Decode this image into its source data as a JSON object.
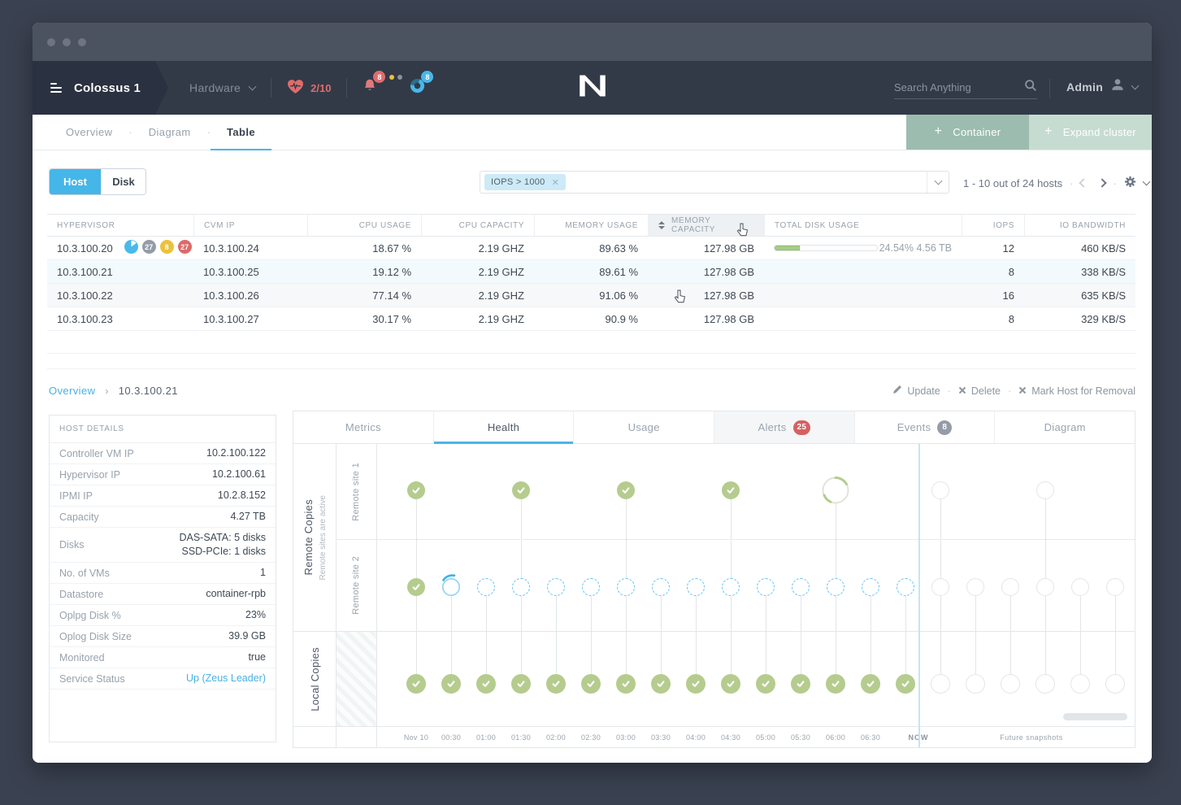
{
  "colors": {
    "accent": "#45b6e8",
    "green": "#b5cc8e",
    "sage_dark": "#9cbcb0",
    "sage_light": "#c6dcd1",
    "red": "#dd6a6a",
    "yellow": "#eac23e",
    "gray_badge": "#959ca8"
  },
  "header": {
    "cluster_name": "Colossus 1",
    "nav_menu": "Hardware",
    "health_ratio": "2/10",
    "alerts_count": "8",
    "tasks_count": "8",
    "search_placeholder": "Search Anything",
    "user_name": "Admin"
  },
  "subnav": {
    "tabs": [
      {
        "label": "Overview"
      },
      {
        "label": "Diagram"
      },
      {
        "label": "Table",
        "active": true
      }
    ],
    "container_button": "Container",
    "expand_button": "Expand cluster"
  },
  "toolbar": {
    "segments": [
      {
        "label": "Host",
        "active": true
      },
      {
        "label": "Disk"
      }
    ],
    "filter_tag": "IOPS > 1000",
    "results_count": "1 - 10 out of 24 hosts"
  },
  "table": {
    "columns": [
      "HYPERVISOR",
      "CVM IP",
      "CPU USAGE",
      "CPU CAPACITY",
      "MEMORY USAGE",
      "MEMORY CAPACITY",
      "TOTAL DISK USAGE",
      "IOPS",
      "IO BANDWIDTH"
    ],
    "sorted_column": "MEMORY CAPACITY",
    "rows": [
      {
        "hypervisor": "10.3.100.20",
        "badges": [
          {
            "type": "pie"
          },
          {
            "type": "count",
            "value": "27",
            "color": "#959ca8"
          },
          {
            "type": "count",
            "value": "8",
            "color": "#eac23e"
          },
          {
            "type": "count",
            "value": "27",
            "color": "#dd6a6a"
          }
        ],
        "cvm_ip": "10.3.100.24",
        "cpu_usage": "18.67 %",
        "cpu_capacity": "2.19 GHZ",
        "memory_usage": "89.63 %",
        "memory_capacity": "127.98 GB",
        "disk_usage_pct": 24.54,
        "disk_usage_label": "24.54% 4.56 TB",
        "iops": "12",
        "io_bandwidth": "460 KB/S",
        "state": "normal"
      },
      {
        "hypervisor": "10.3.100.21",
        "cvm_ip": "10.3.100.25",
        "cpu_usage": "19.12 %",
        "cpu_capacity": "2.19 GHZ",
        "memory_usage": "89.61 %",
        "memory_capacity": "127.98 GB",
        "iops": "8",
        "io_bandwidth": "338 KB/S",
        "state": "selected"
      },
      {
        "hypervisor": "10.3.100.22",
        "cvm_ip": "10.3.100.26",
        "cpu_usage": "77.14 %",
        "cpu_capacity": "2.19 GHZ",
        "memory_usage": "91.06 %",
        "memory_capacity": "127.98 GB",
        "iops": "16",
        "io_bandwidth": "635 KB/S",
        "state": "hover"
      },
      {
        "hypervisor": "10.3.100.23",
        "cvm_ip": "10.3.100.27",
        "cpu_usage": "30.17 %",
        "cpu_capacity": "2.19 GHZ",
        "memory_usage": "90.9 %",
        "memory_capacity": "127.98 GB",
        "iops": "8",
        "io_bandwidth": "329 KB/S",
        "state": "normal"
      }
    ]
  },
  "breadcrumb": {
    "parent": "Overview",
    "current": "10.3.100.21"
  },
  "host_actions": [
    {
      "label": "Update",
      "icon": "pencil"
    },
    {
      "label": "Delete",
      "icon": "x"
    },
    {
      "label": "Mark Host for Removal",
      "icon": "x"
    }
  ],
  "host_details": {
    "title": "HOST DETAILS",
    "rows": [
      {
        "label": "Controller VM IP",
        "value": "10.2.100.122"
      },
      {
        "label": "Hypervisor IP",
        "value": "10.2.100.61"
      },
      {
        "label": "IPMI IP",
        "value": "10.2.8.152"
      },
      {
        "label": "Capacity",
        "value": "4.27 TB"
      },
      {
        "label": "Disks",
        "value": "DAS-SATA: 5 disks",
        "value2": "SSD-PCIe: 1 disks"
      },
      {
        "label": "No. of VMs",
        "value": "1"
      },
      {
        "label": "Datastore",
        "value": "container-rpb"
      },
      {
        "label": "Oplpg Disk %",
        "value": "23%"
      },
      {
        "label": "Oplog Disk Size",
        "value": "39.9 GB"
      },
      {
        "label": "Monitored",
        "value": "true"
      },
      {
        "label": "Service Status",
        "value": "Up (Zeus Leader)",
        "link": true
      }
    ]
  },
  "detail_tabs": [
    {
      "label": "Metrics"
    },
    {
      "label": "Health",
      "active": true
    },
    {
      "label": "Usage"
    },
    {
      "label": "Alerts",
      "badge": "25",
      "badge_color": "#d66161",
      "shaded": true
    },
    {
      "label": "Events",
      "badge": "8",
      "badge_color": "#959ca8"
    },
    {
      "label": "Diagram"
    }
  ],
  "timeline": {
    "group_remote_label": "Remote Copies",
    "group_remote_sub": "Remote sites are active",
    "site1_label": "Remote site 1",
    "site2_label": "Remote site 2",
    "group_local_label": "Local Copies",
    "x_labels": [
      "Nov 10",
      "00:30",
      "01:00",
      "01:30",
      "02:00",
      "02:30",
      "03:00",
      "03:30",
      "04:00",
      "04:30",
      "05:00",
      "05:30",
      "06:00",
      "06:30"
    ],
    "now_label": "NOW",
    "future_label": "Future snapshots",
    "rows": [
      {
        "name": "remote-site-1",
        "marks": [
          "done",
          null,
          null,
          "done",
          null,
          null,
          "done",
          null,
          null,
          "done",
          null,
          null,
          "spinner",
          null,
          null,
          "future",
          null,
          null,
          "future",
          null,
          null
        ]
      },
      {
        "name": "remote-site-2",
        "marks": [
          "done",
          "progress",
          "pending",
          "pending",
          "pending",
          "pending",
          "pending",
          "pending",
          "pending",
          "pending",
          "pending",
          "pending",
          "pending",
          "pending",
          "pending",
          "future",
          "future",
          "future",
          "future",
          "future",
          "future"
        ]
      },
      {
        "name": "local",
        "marks": [
          "done",
          "done",
          "done",
          "done",
          "done",
          "done",
          "done",
          "done",
          "done",
          "done",
          "done",
          "done",
          "done",
          "done",
          "done",
          "future",
          "future",
          "future",
          "future",
          "future",
          "future"
        ]
      }
    ]
  }
}
